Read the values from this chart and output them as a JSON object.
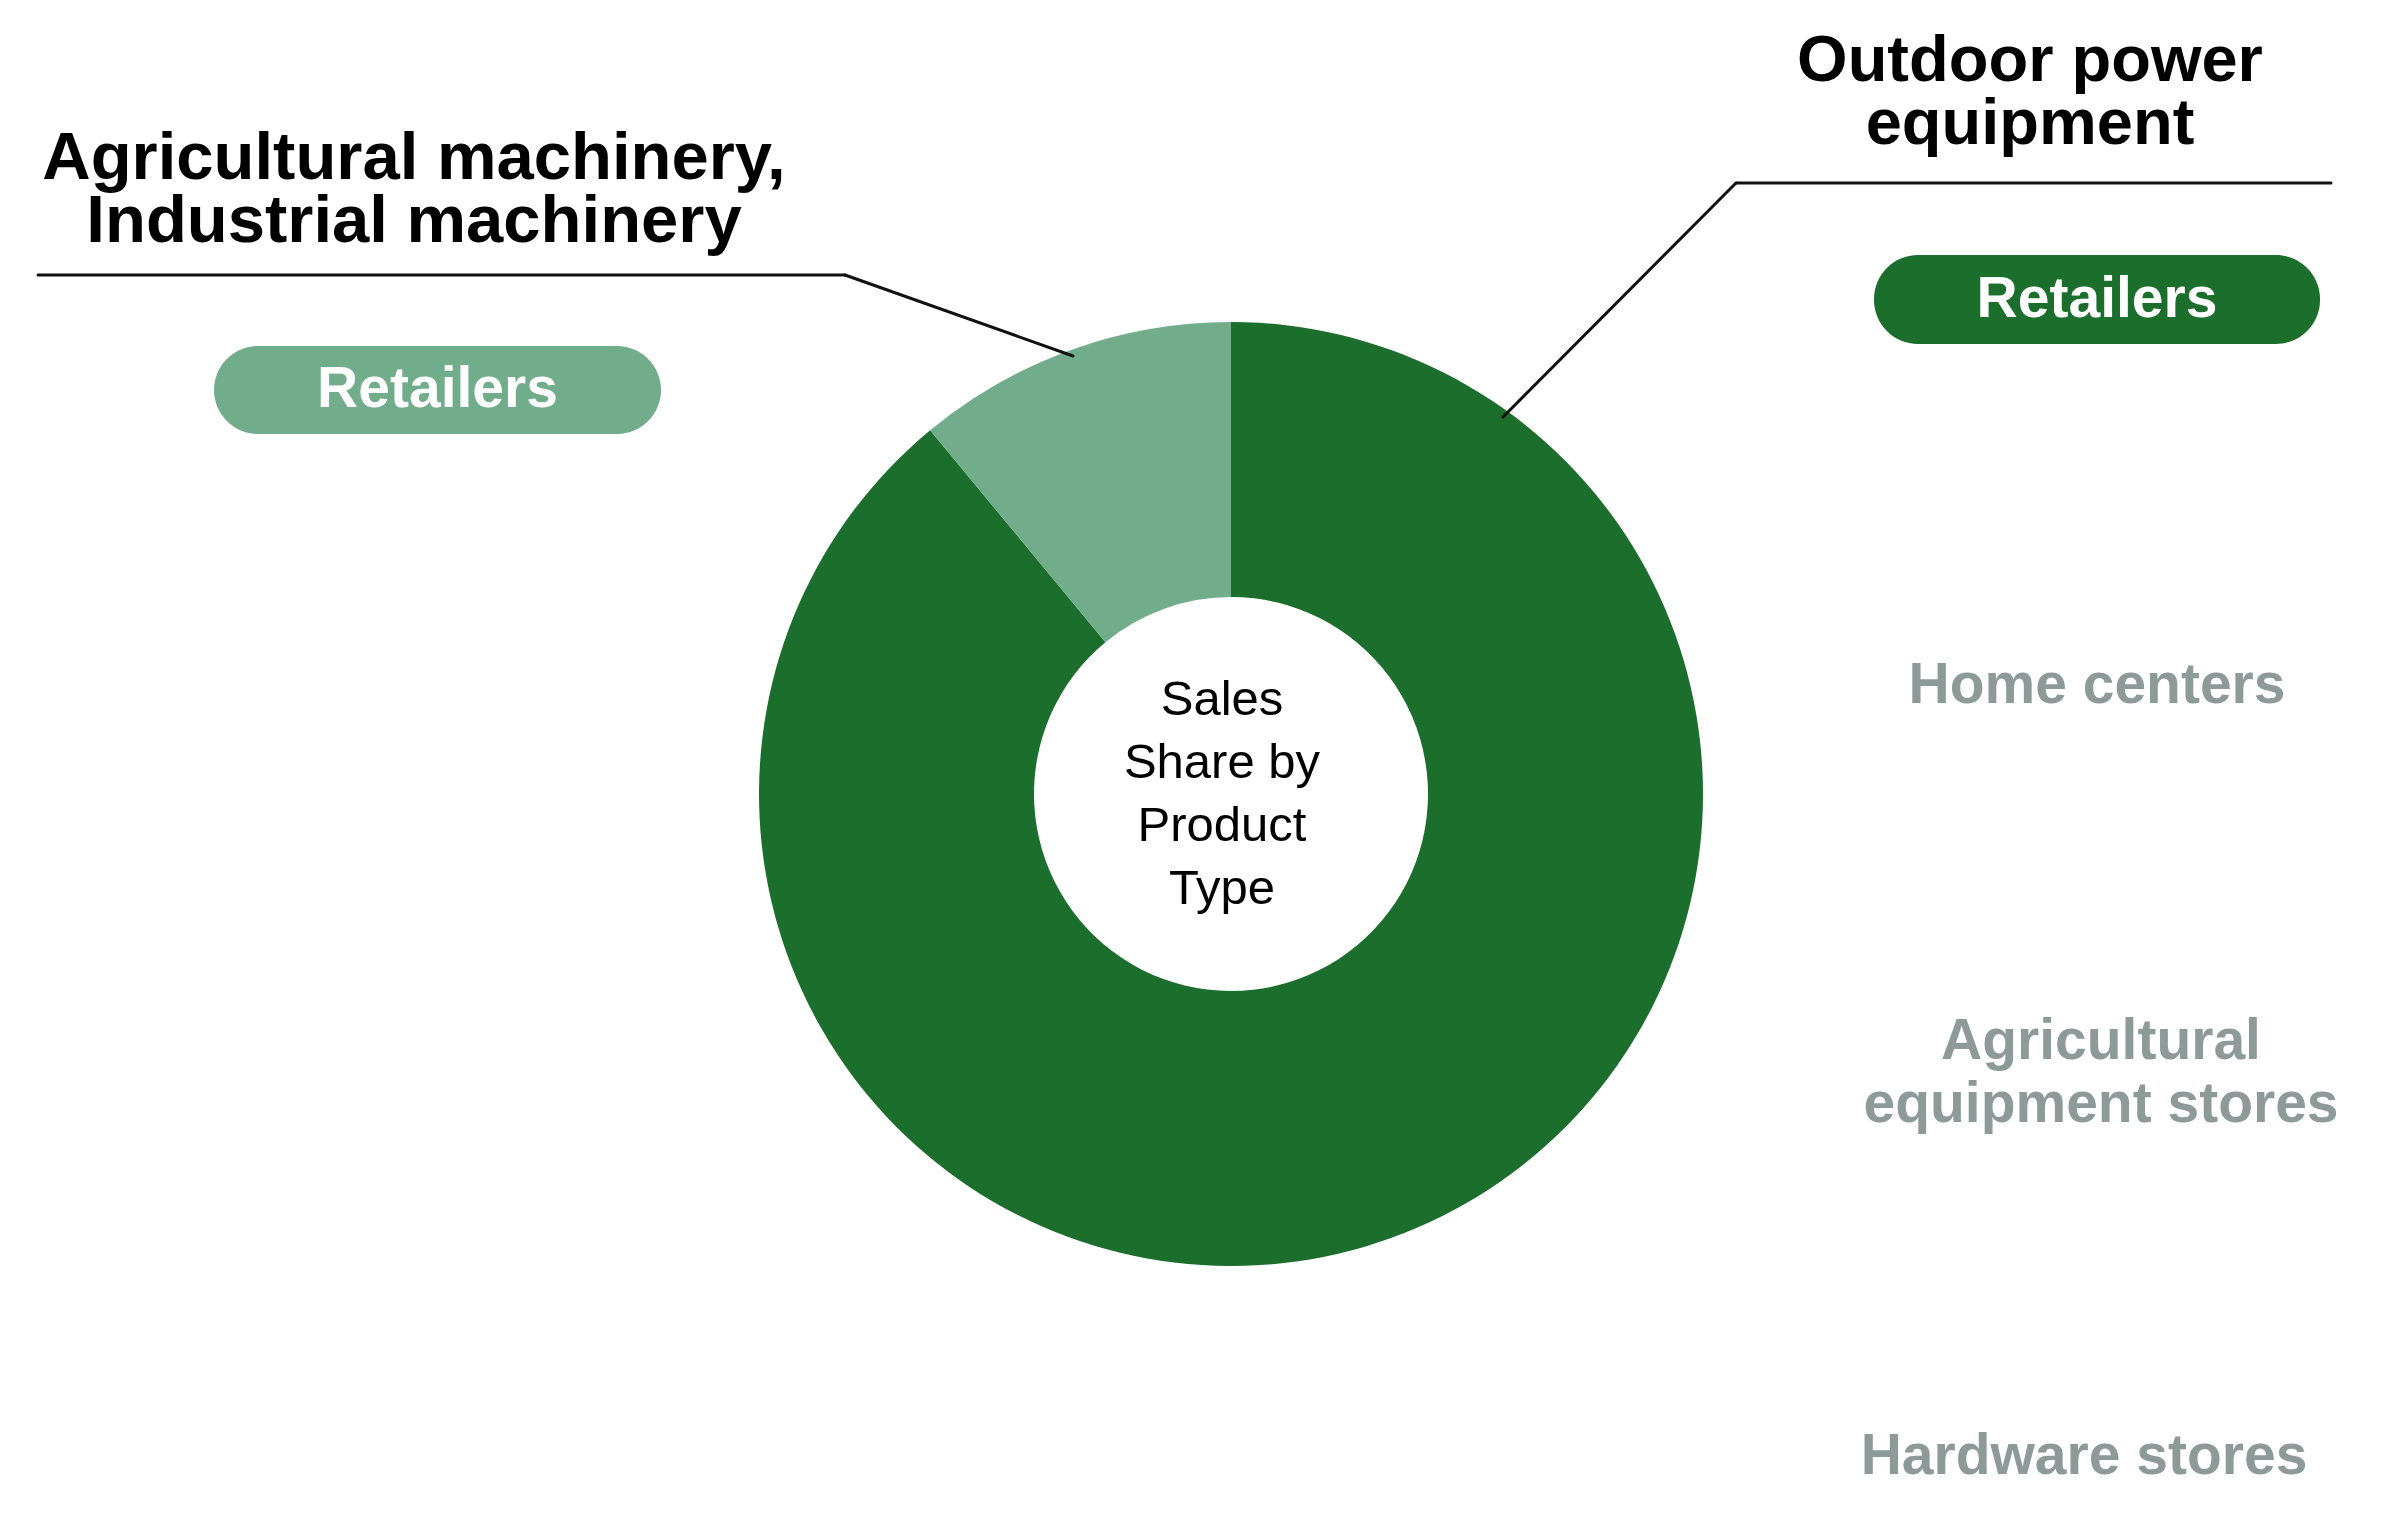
{
  "chart_data": {
    "type": "donut",
    "title": "Sales Share by Product Type",
    "categories": [
      "Outdoor power equipment",
      "Agricultural machinery, Industrial machinery"
    ],
    "values": [
      89,
      11
    ],
    "colors": [
      "#1b6e2c",
      "#72ad8b"
    ],
    "annotations": [
      "Retailers",
      "Retailers",
      "Home centers",
      "Agricultural equipment stores",
      "Hardware stores"
    ]
  }
}
